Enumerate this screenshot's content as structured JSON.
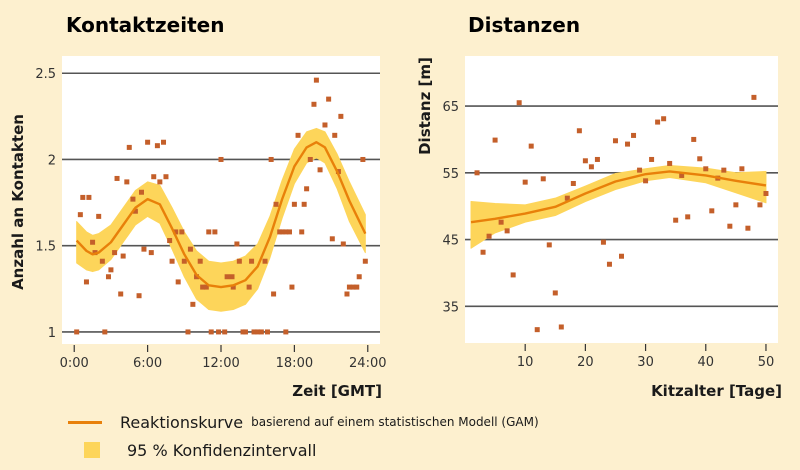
{
  "colors": {
    "background": "#fdf0cf",
    "plot_bg": "#ffffff",
    "band": "#fdd55a",
    "curve": "#e8800a",
    "points": "#c45f2a",
    "grid": "#555555"
  },
  "legend": {
    "curve_label": "Reaktionskurve",
    "curve_note": "basierend auf einem statistischen Modell (GAM)",
    "band_label": "95 % Konfidenzintervall"
  },
  "chart_data": [
    {
      "type": "scatter",
      "title": "Kontaktzeiten",
      "xlabel": "Zeit [GMT]",
      "ylabel": "Anzahl an Kontakten",
      "xlim": [
        -1,
        25
      ],
      "ylim": [
        0.93,
        2.6
      ],
      "xticks": [
        0,
        6,
        12,
        18,
        24
      ],
      "xtick_labels": [
        "0:00",
        "6:00",
        "12:00",
        "18:00",
        "24:00"
      ],
      "yticks": [
        1,
        1.5,
        2,
        2.5
      ],
      "ytick_labels": [
        "1",
        "1.5",
        "2",
        "2.5"
      ],
      "grid": "horizontal",
      "points": [
        [
          0.2,
          1.0
        ],
        [
          0.5,
          1.68
        ],
        [
          0.7,
          1.78
        ],
        [
          1.2,
          1.78
        ],
        [
          1.0,
          1.29
        ],
        [
          1.5,
          1.52
        ],
        [
          1.7,
          1.46
        ],
        [
          2.0,
          1.67
        ],
        [
          2.3,
          1.41
        ],
        [
          2.5,
          1.0
        ],
        [
          2.8,
          1.32
        ],
        [
          3.0,
          1.36
        ],
        [
          3.3,
          1.46
        ],
        [
          3.5,
          1.89
        ],
        [
          3.8,
          1.22
        ],
        [
          4.0,
          1.44
        ],
        [
          4.3,
          1.87
        ],
        [
          4.5,
          2.07
        ],
        [
          4.8,
          1.77
        ],
        [
          5.0,
          1.7
        ],
        [
          5.3,
          1.21
        ],
        [
          5.5,
          1.81
        ],
        [
          5.7,
          1.48
        ],
        [
          6.0,
          2.1
        ],
        [
          6.3,
          1.46
        ],
        [
          6.5,
          1.9
        ],
        [
          6.8,
          2.08
        ],
        [
          7.0,
          1.87
        ],
        [
          7.3,
          2.1
        ],
        [
          7.5,
          1.9
        ],
        [
          7.8,
          1.53
        ],
        [
          8.0,
          1.41
        ],
        [
          8.3,
          1.58
        ],
        [
          8.5,
          1.29
        ],
        [
          8.8,
          1.58
        ],
        [
          9.0,
          1.41
        ],
        [
          9.3,
          1.0
        ],
        [
          9.5,
          1.48
        ],
        [
          9.7,
          1.16
        ],
        [
          10.0,
          1.32
        ],
        [
          10.3,
          1.41
        ],
        [
          10.5,
          1.26
        ],
        [
          10.8,
          1.26
        ],
        [
          11.0,
          1.58
        ],
        [
          11.2,
          1.0
        ],
        [
          11.5,
          1.58
        ],
        [
          11.8,
          1.0
        ],
        [
          12.0,
          2.0
        ],
        [
          12.3,
          1.0
        ],
        [
          12.5,
          1.32
        ],
        [
          12.9,
          1.32
        ],
        [
          13.0,
          1.26
        ],
        [
          13.3,
          1.51
        ],
        [
          13.5,
          1.41
        ],
        [
          13.8,
          1.0
        ],
        [
          14.0,
          1.0
        ],
        [
          14.3,
          1.26
        ],
        [
          14.5,
          1.41
        ],
        [
          14.7,
          1.0
        ],
        [
          15.0,
          1.0
        ],
        [
          15.3,
          1.0
        ],
        [
          15.6,
          1.41
        ],
        [
          15.8,
          1.0
        ],
        [
          16.1,
          2.0
        ],
        [
          16.3,
          1.22
        ],
        [
          16.5,
          1.74
        ],
        [
          16.8,
          1.58
        ],
        [
          17.0,
          1.58
        ],
        [
          17.3,
          1.58
        ],
        [
          17.3,
          1.0
        ],
        [
          17.6,
          1.58
        ],
        [
          17.8,
          1.26
        ],
        [
          18.0,
          1.74
        ],
        [
          18.3,
          2.14
        ],
        [
          18.6,
          1.58
        ],
        [
          18.8,
          1.74
        ],
        [
          19.0,
          1.83
        ],
        [
          19.3,
          2.0
        ],
        [
          19.6,
          2.32
        ],
        [
          19.8,
          2.46
        ],
        [
          20.1,
          1.94
        ],
        [
          20.5,
          2.2
        ],
        [
          20.8,
          2.35
        ],
        [
          21.1,
          1.54
        ],
        [
          21.3,
          2.14
        ],
        [
          21.6,
          1.93
        ],
        [
          21.8,
          2.25
        ],
        [
          22.0,
          1.51
        ],
        [
          22.3,
          1.22
        ],
        [
          22.5,
          1.26
        ],
        [
          22.8,
          1.26
        ],
        [
          23.1,
          1.26
        ],
        [
          23.3,
          1.32
        ],
        [
          23.6,
          2.0
        ],
        [
          23.8,
          1.41
        ]
      ],
      "curve": {
        "x": [
          0.2,
          1,
          1.5,
          2,
          3,
          4,
          5,
          6,
          7,
          8,
          9,
          10,
          11,
          12,
          13,
          14,
          15,
          16,
          17,
          18,
          19,
          19.8,
          20.5,
          21.5,
          22.5,
          23.8
        ],
        "y": [
          1.53,
          1.47,
          1.45,
          1.46,
          1.52,
          1.62,
          1.72,
          1.77,
          1.74,
          1.6,
          1.45,
          1.33,
          1.27,
          1.26,
          1.27,
          1.3,
          1.38,
          1.55,
          1.77,
          1.96,
          2.07,
          2.1,
          2.07,
          1.93,
          1.76,
          1.57
        ],
        "lower": [
          1.4,
          1.36,
          1.35,
          1.36,
          1.42,
          1.52,
          1.62,
          1.67,
          1.63,
          1.48,
          1.32,
          1.19,
          1.13,
          1.12,
          1.13,
          1.16,
          1.25,
          1.43,
          1.66,
          1.86,
          1.98,
          2.01,
          1.98,
          1.83,
          1.64,
          1.46
        ],
        "upper": [
          1.64,
          1.58,
          1.56,
          1.57,
          1.62,
          1.72,
          1.82,
          1.87,
          1.85,
          1.72,
          1.58,
          1.47,
          1.41,
          1.4,
          1.41,
          1.44,
          1.51,
          1.67,
          1.88,
          2.06,
          2.16,
          2.18,
          2.16,
          2.03,
          1.87,
          1.68
        ]
      }
    },
    {
      "type": "scatter",
      "title": "Distanzen",
      "xlabel": "Kitzalter [Tage]",
      "ylabel": "Distanz [m]",
      "xlim": [
        0,
        52
      ],
      "ylim": [
        29.5,
        72.5
      ],
      "xticks": [
        10,
        20,
        30,
        40,
        50
      ],
      "xtick_labels": [
        "10",
        "20",
        "30",
        "40",
        "50"
      ],
      "yticks": [
        35,
        45,
        55,
        65
      ],
      "ytick_labels": [
        "35",
        "45",
        "55",
        "65"
      ],
      "grid": "horizontal",
      "points": [
        [
          2,
          55.0
        ],
        [
          3,
          43.1
        ],
        [
          4,
          45.5
        ],
        [
          5,
          59.9
        ],
        [
          6,
          47.6
        ],
        [
          7,
          46.3
        ],
        [
          8,
          39.7
        ],
        [
          9,
          65.5
        ],
        [
          10,
          53.6
        ],
        [
          11,
          59.0
        ],
        [
          12,
          31.5
        ],
        [
          13,
          54.1
        ],
        [
          14,
          44.2
        ],
        [
          15,
          37.0
        ],
        [
          16,
          31.9
        ],
        [
          17,
          51.2
        ],
        [
          18,
          53.4
        ],
        [
          19,
          61.3
        ],
        [
          20,
          56.8
        ],
        [
          21,
          55.9
        ],
        [
          22,
          57.0
        ],
        [
          23,
          44.6
        ],
        [
          24,
          41.3
        ],
        [
          25,
          59.8
        ],
        [
          26,
          42.5
        ],
        [
          27,
          59.3
        ],
        [
          28,
          60.6
        ],
        [
          29,
          55.4
        ],
        [
          30,
          53.8
        ],
        [
          31,
          57.0
        ],
        [
          32,
          62.6
        ],
        [
          33,
          63.1
        ],
        [
          34,
          56.4
        ],
        [
          35,
          47.9
        ],
        [
          36,
          54.6
        ],
        [
          37,
          48.4
        ],
        [
          38,
          60.0
        ],
        [
          39,
          57.1
        ],
        [
          40,
          55.6
        ],
        [
          41,
          49.3
        ],
        [
          42,
          54.2
        ],
        [
          43,
          55.4
        ],
        [
          44,
          47.0
        ],
        [
          45,
          50.2
        ],
        [
          46,
          55.6
        ],
        [
          47,
          46.7
        ],
        [
          48,
          66.3
        ],
        [
          49,
          50.2
        ],
        [
          50,
          51.9
        ]
      ],
      "curve": {
        "x": [
          1,
          5,
          10,
          15,
          20,
          25,
          30,
          34,
          40,
          45,
          50
        ],
        "y": [
          47.6,
          48.1,
          48.9,
          49.9,
          51.9,
          53.7,
          54.8,
          55.2,
          54.6,
          53.8,
          53.1
        ],
        "lower": [
          43.7,
          46.0,
          47.6,
          48.6,
          50.7,
          52.5,
          53.8,
          54.3,
          53.5,
          52.0,
          50.5
        ],
        "upper": [
          50.7,
          50.4,
          50.2,
          51.2,
          53.0,
          54.9,
          55.6,
          56.1,
          55.7,
          55.0,
          55.2
        ]
      }
    }
  ]
}
